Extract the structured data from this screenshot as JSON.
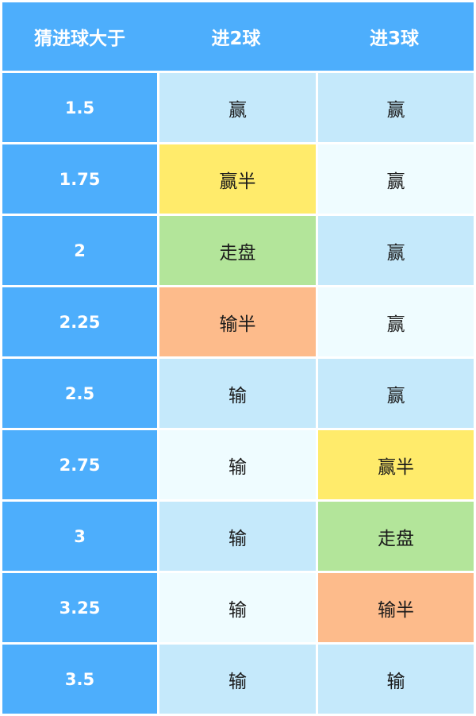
{
  "header": {
    "col1": "猜进球大于",
    "col2": "进2球",
    "col3": "进3球"
  },
  "colors": {
    "header": "#4daefc",
    "row_a": "#c5e9fb",
    "row_b": "#effcff",
    "win_half": "#ffeb6b",
    "push": "#b3e59a",
    "lose_half": "#fdbb8b"
  },
  "rows": [
    {
      "line": "1.5",
      "two": "赢",
      "three": "赢",
      "two_color": "#c5e9fb",
      "three_color": "#c5e9fb"
    },
    {
      "line": "1.75",
      "two": "赢半",
      "three": "赢",
      "two_color": "#ffeb6b",
      "three_color": "#effcff"
    },
    {
      "line": "2",
      "two": "走盘",
      "three": "赢",
      "two_color": "#b3e59a",
      "three_color": "#c5e9fb"
    },
    {
      "line": "2.25",
      "two": "输半",
      "three": "赢",
      "two_color": "#fdbb8b",
      "three_color": "#effcff"
    },
    {
      "line": "2.5",
      "two": "输",
      "three": "赢",
      "two_color": "#c5e9fb",
      "three_color": "#c5e9fb"
    },
    {
      "line": "2.75",
      "two": "输",
      "three": "赢半",
      "two_color": "#effcff",
      "three_color": "#ffeb6b"
    },
    {
      "line": "3",
      "two": "输",
      "three": "走盘",
      "two_color": "#c5e9fb",
      "three_color": "#b3e59a"
    },
    {
      "line": "3.25",
      "two": "输",
      "three": "输半",
      "two_color": "#effcff",
      "three_color": "#fdbb8b"
    },
    {
      "line": "3.5",
      "two": "输",
      "three": "输",
      "two_color": "#c5e9fb",
      "three_color": "#c5e9fb"
    }
  ]
}
